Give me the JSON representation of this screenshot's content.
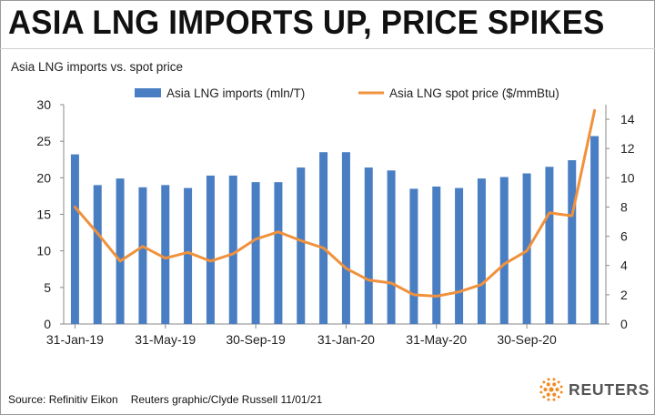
{
  "header": {
    "title": "ASIA LNG IMPORTS UP, PRICE SPIKES",
    "subtitle": "Asia LNG imports vs. spot price"
  },
  "footer": {
    "source": "Source: Refinitiv Eikon",
    "credit": "Reuters graphic/Clyde Russell 11/01/21",
    "logo_text": "REUTERS"
  },
  "colors": {
    "bar": "#4a7ec3",
    "line": "#f0913c",
    "logo": "#f28c28"
  },
  "chart_data": {
    "type": "bar+line",
    "title": "Asia LNG imports vs. spot price",
    "x": [
      "2019-01-31",
      "2019-02-28",
      "2019-03-31",
      "2019-04-30",
      "2019-05-31",
      "2019-06-30",
      "2019-07-31",
      "2019-08-31",
      "2019-09-30",
      "2019-10-31",
      "2019-11-30",
      "2019-12-31",
      "2020-01-31",
      "2020-02-29",
      "2020-03-31",
      "2020-04-30",
      "2020-05-31",
      "2020-06-30",
      "2020-07-31",
      "2020-08-31",
      "2020-09-30",
      "2020-10-31",
      "2020-11-30",
      "2020-12-31"
    ],
    "x_tick_labels": [
      "31-Jan-19",
      "31-May-19",
      "30-Sep-19",
      "31-Jan-20",
      "31-May-20",
      "30-Sep-20"
    ],
    "series": [
      {
        "name": "Asia LNG imports (mln/T)",
        "type": "bar",
        "axis": "left",
        "values": [
          23.2,
          19.0,
          19.9,
          18.7,
          19.0,
          18.6,
          20.3,
          20.3,
          19.4,
          19.4,
          21.4,
          23.5,
          23.5,
          21.4,
          21.0,
          18.5,
          18.8,
          18.6,
          19.9,
          20.1,
          20.6,
          21.5,
          22.4,
          25.7
        ]
      },
      {
        "name": "Asia LNG spot price ($/mmBtu)",
        "type": "line",
        "axis": "right",
        "values": [
          8.0,
          6.2,
          4.3,
          5.3,
          4.5,
          4.9,
          4.3,
          4.8,
          5.8,
          6.3,
          5.7,
          5.2,
          3.8,
          3.0,
          2.8,
          2.0,
          1.9,
          2.2,
          2.7,
          4.1,
          5.0,
          7.6,
          7.4,
          14.6
        ]
      }
    ],
    "y_left": {
      "ylim": [
        0,
        30
      ],
      "ticks": [
        "0",
        "5",
        "10",
        "15",
        "20",
        "25",
        "30"
      ]
    },
    "y_right": {
      "ylim": [
        0,
        15
      ],
      "ticks": [
        "0",
        "2",
        "4",
        "6",
        "8",
        "10",
        "12",
        "14"
      ]
    },
    "grid": false,
    "legend_position": "top"
  }
}
